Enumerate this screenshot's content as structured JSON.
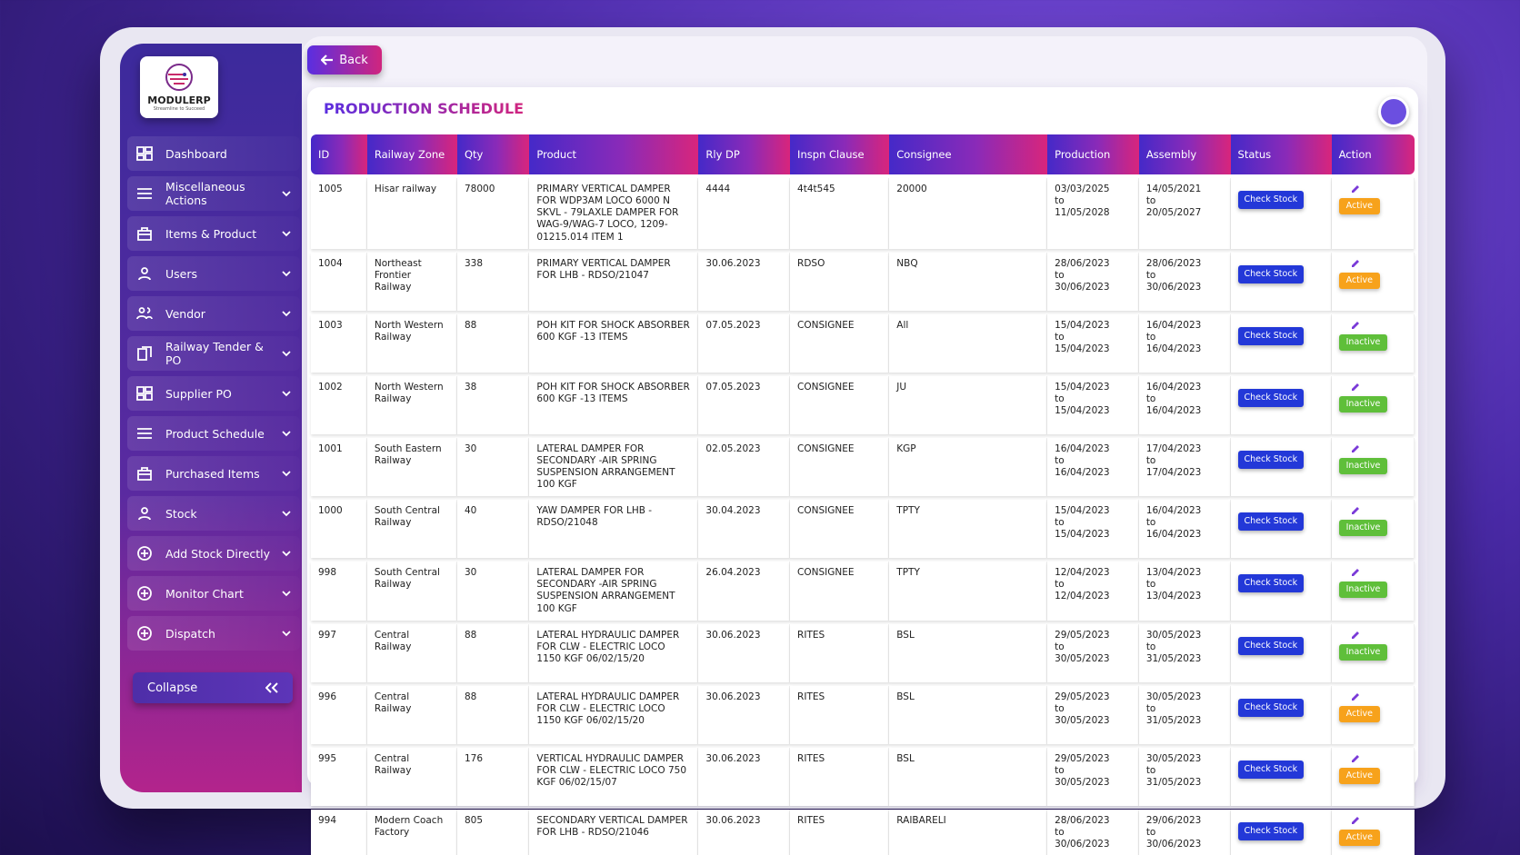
{
  "brand": {
    "name": "MODULERP",
    "tagline": "Streamline to Succeed"
  },
  "sidebar": {
    "items": [
      "Dashboard",
      "Miscellaneous Actions",
      "Items & Product",
      "Users",
      "Vendor",
      "Railway Tender & PO",
      "Supplier PO",
      "Product Schedule",
      "Purchased Items",
      "Stock",
      "Add Stock Directly",
      "Monitor Chart",
      "Dispatch"
    ],
    "collapse": "Collapse"
  },
  "header": {
    "back": "Back",
    "title": "PRODUCTION SCHEDULE"
  },
  "table": {
    "columns": [
      "ID",
      "Railway Zone",
      "Qty",
      "Product",
      "Rly DP",
      "Inspn Clause",
      "Consignee",
      "Production",
      "Assembly",
      "Status",
      "Action"
    ],
    "range_separator": "to",
    "check_stock": "Check Stock",
    "rows": [
      {
        "id": "1005",
        "zone": "Hisar railway",
        "qty": "78000",
        "product": "PRIMARY VERTICAL DAMPER FOR WDP3AM LOCO 6000 N SKVL - 79LAXLE DAMPER FOR WAG-9/WAG-7 LOCO, 1209-01215.014 ITEM 1",
        "rly_dp": "4444",
        "inspn": "4t4t545",
        "consignee": "20000",
        "production": [
          "03/03/2025",
          "11/05/2028"
        ],
        "assembly": [
          "14/05/2021",
          "20/05/2027"
        ],
        "status": "Active"
      },
      {
        "id": "1004",
        "zone": "Northeast Frontier Railway",
        "qty": "338",
        "product": "PRIMARY VERTICAL DAMPER FOR LHB - RDSO/21047",
        "rly_dp": "30.06.2023",
        "inspn": "RDSO",
        "consignee": "NBQ",
        "production": [
          "28/06/2023",
          "30/06/2023"
        ],
        "assembly": [
          "28/06/2023",
          "30/06/2023"
        ],
        "status": "Active"
      },
      {
        "id": "1003",
        "zone": "North Western Railway",
        "qty": "88",
        "product": "POH KIT FOR SHOCK ABSORBER 600 KGF -13 ITEMS",
        "rly_dp": "07.05.2023",
        "inspn": "CONSIGNEE",
        "consignee": "All",
        "production": [
          "15/04/2023",
          "15/04/2023"
        ],
        "assembly": [
          "16/04/2023",
          "16/04/2023"
        ],
        "status": "Inactive"
      },
      {
        "id": "1002",
        "zone": "North Western Railway",
        "qty": "38",
        "product": "POH KIT FOR SHOCK ABSORBER 600 KGF -13 ITEMS",
        "rly_dp": "07.05.2023",
        "inspn": "CONSIGNEE",
        "consignee": "JU",
        "production": [
          "15/04/2023",
          "15/04/2023"
        ],
        "assembly": [
          "16/04/2023",
          "16/04/2023"
        ],
        "status": "Inactive"
      },
      {
        "id": "1001",
        "zone": "South Eastern Railway",
        "qty": "30",
        "product": "LATERAL DAMPER FOR SECONDARY -AIR SPRING SUSPENSION ARRANGEMENT 100 KGF",
        "rly_dp": "02.05.2023",
        "inspn": "CONSIGNEE",
        "consignee": "KGP",
        "production": [
          "16/04/2023",
          "16/04/2023"
        ],
        "assembly": [
          "17/04/2023",
          "17/04/2023"
        ],
        "status": "Inactive"
      },
      {
        "id": "1000",
        "zone": "South Central Railway",
        "qty": "40",
        "product": "YAW DAMPER FOR LHB - RDSO/21048",
        "rly_dp": "30.04.2023",
        "inspn": "CONSIGNEE",
        "consignee": "TPTY",
        "production": [
          "15/04/2023",
          "15/04/2023"
        ],
        "assembly": [
          "16/04/2023",
          "16/04/2023"
        ],
        "status": "Inactive"
      },
      {
        "id": "998",
        "zone": "South Central Railway",
        "qty": "30",
        "product": "LATERAL DAMPER FOR SECONDARY -AIR SPRING SUSPENSION ARRANGEMENT 100 KGF",
        "rly_dp": "26.04.2023",
        "inspn": "CONSIGNEE",
        "consignee": "TPTY",
        "production": [
          "12/04/2023",
          "12/04/2023"
        ],
        "assembly": [
          "13/04/2023",
          "13/04/2023"
        ],
        "status": "Inactive"
      },
      {
        "id": "997",
        "zone": "Central Railway",
        "qty": "88",
        "product": "LATERAL HYDRAULIC DAMPER FOR CLW - ELECTRIC LOCO 1150 KGF 06/02/15/20",
        "rly_dp": "30.06.2023",
        "inspn": "RITES",
        "consignee": "BSL",
        "production": [
          "29/05/2023",
          "30/05/2023"
        ],
        "assembly": [
          "30/05/2023",
          "31/05/2023"
        ],
        "status": "Inactive"
      },
      {
        "id": "996",
        "zone": "Central Railway",
        "qty": "88",
        "product": "LATERAL HYDRAULIC DAMPER FOR CLW - ELECTRIC LOCO 1150 KGF 06/02/15/20",
        "rly_dp": "30.06.2023",
        "inspn": "RITES",
        "consignee": "BSL",
        "production": [
          "29/05/2023",
          "30/05/2023"
        ],
        "assembly": [
          "30/05/2023",
          "31/05/2023"
        ],
        "status": "Active"
      },
      {
        "id": "995",
        "zone": "Central Railway",
        "qty": "176",
        "product": "VERTICAL HYDRAULIC DAMPER FOR CLW - ELECTRIC LOCO 750 KGF 06/02/15/07",
        "rly_dp": "30.06.2023",
        "inspn": "RITES",
        "consignee": "BSL",
        "production": [
          "29/05/2023",
          "30/05/2023"
        ],
        "assembly": [
          "30/05/2023",
          "31/05/2023"
        ],
        "status": "Active"
      },
      {
        "id": "994",
        "zone": "Modern Coach Factory",
        "qty": "805",
        "product": "SECONDARY VERTICAL DAMPER FOR LHB - RDSO/21046",
        "rly_dp": "30.06.2023",
        "inspn": "RITES",
        "consignee": "RAIBARELI",
        "production": [
          "28/06/2023",
          "30/06/2023"
        ],
        "assembly": [
          "29/06/2023",
          "30/06/2023"
        ],
        "status": "Active"
      }
    ]
  }
}
